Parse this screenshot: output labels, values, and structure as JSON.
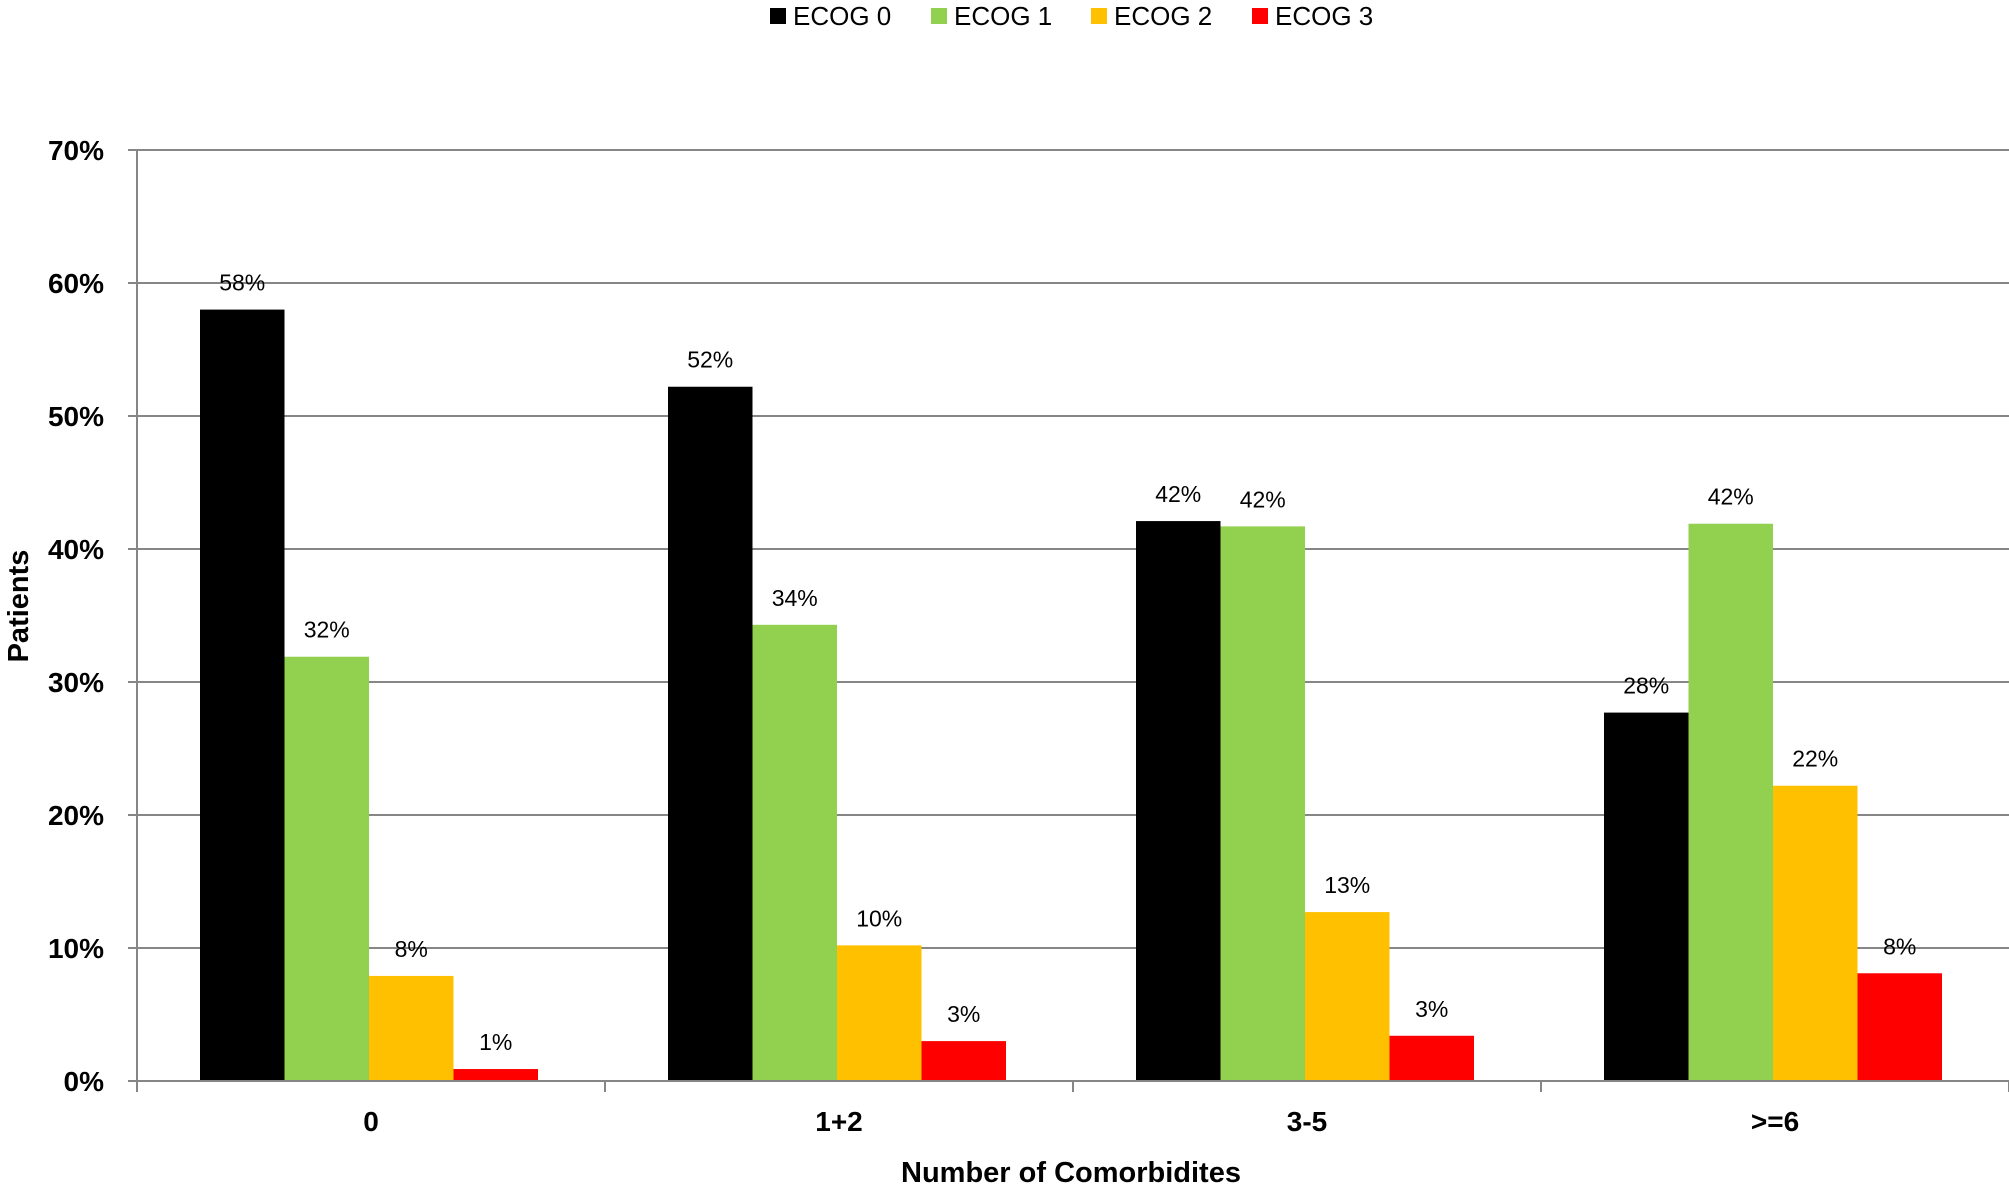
{
  "chart_data": {
    "type": "bar",
    "categories": [
      "0",
      "1+2",
      "3-5",
      ">=6"
    ],
    "series": [
      {
        "name": "ECOG 0",
        "color": "#000000",
        "values": [
          58,
          52,
          42,
          28
        ]
      },
      {
        "name": "ECOG 1",
        "color": "#92d050",
        "values": [
          32,
          34,
          42,
          42
        ]
      },
      {
        "name": "ECOG 2",
        "color": "#ffc000",
        "values": [
          8,
          10,
          13,
          22
        ]
      },
      {
        "name": "ECOG 3",
        "color": "#ff0000",
        "values": [
          1,
          3,
          3,
          8
        ]
      }
    ],
    "exact_values": [
      [
        58.0,
        52.2,
        42.1,
        27.7
      ],
      [
        31.9,
        34.3,
        41.7,
        41.9
      ],
      [
        7.9,
        10.2,
        12.7,
        22.2
      ],
      [
        0.9,
        3.0,
        3.4,
        8.1
      ]
    ],
    "data_labels": [
      [
        "58%",
        "52%",
        "42%",
        "28%"
      ],
      [
        "32%",
        "34%",
        "42%",
        "42%"
      ],
      [
        "8%",
        "10%",
        "13%",
        "22%"
      ],
      [
        "1%",
        "3%",
        "3%",
        "8%"
      ]
    ],
    "xlabel": "Number of Comorbidites",
    "ylabel": "Patients",
    "ylim": [
      0,
      70
    ],
    "yticks": [
      0,
      10,
      20,
      30,
      40,
      50,
      60,
      70
    ],
    "ytick_labels": [
      "0%",
      "10%",
      "20%",
      "30%",
      "40%",
      "50%",
      "60%",
      "70%"
    ],
    "grid": true,
    "legend_position": "top-center"
  },
  "colors": {
    "gridline": "#868686",
    "axis": "#868686"
  }
}
